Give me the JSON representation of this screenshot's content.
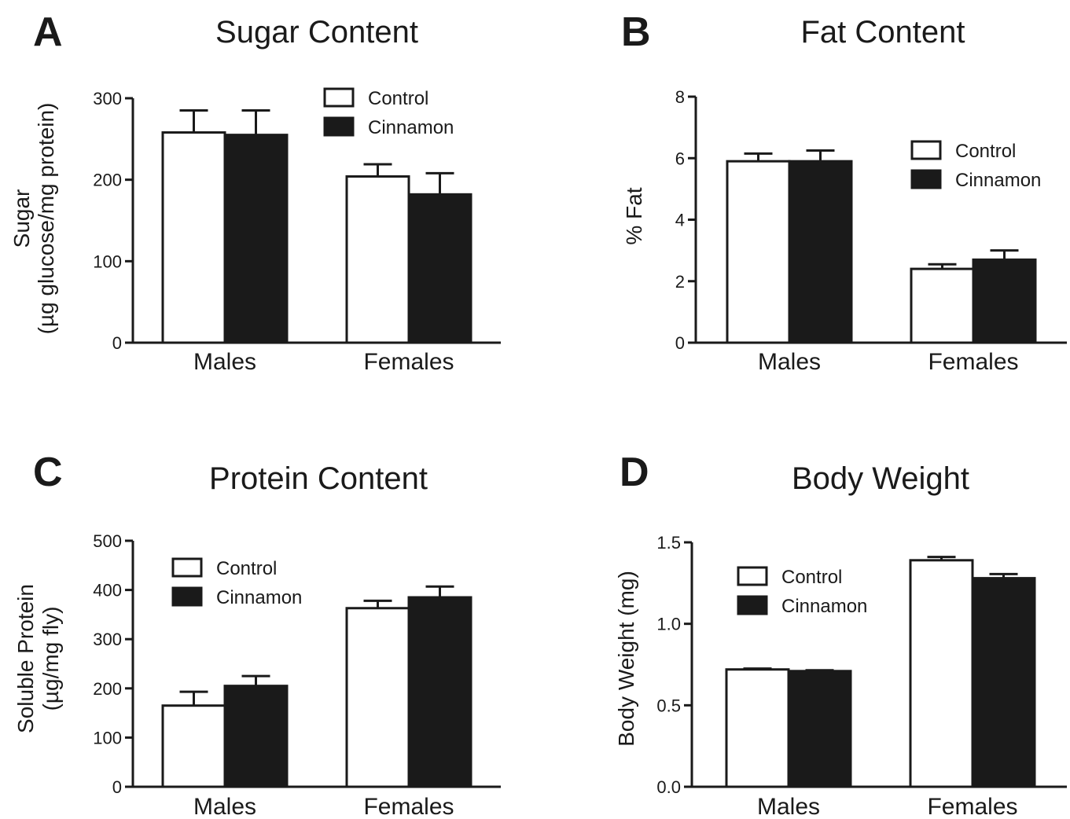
{
  "colors": {
    "control": "#ffffff",
    "cinnamon": "#1a1a1a",
    "stroke": "#1a1a1a"
  },
  "chart_data": [
    {
      "panel": "A",
      "type": "bar",
      "title": "Sugar Content",
      "ylabel_lines": [
        "Sugar",
        "(µg glucose/mg protein)"
      ],
      "categories": [
        "Males",
        "Females"
      ],
      "series": [
        {
          "name": "Control",
          "values": [
            258,
            204
          ],
          "errors": [
            27,
            15
          ]
        },
        {
          "name": "Cinnamon",
          "values": [
            255,
            182
          ],
          "errors": [
            30,
            26
          ]
        }
      ],
      "ylim": [
        0,
        300
      ],
      "yticks": [
        0,
        100,
        200,
        300
      ],
      "ytick_labels": [
        "0",
        "100",
        "200",
        "300"
      ],
      "legend": "top-right"
    },
    {
      "panel": "B",
      "type": "bar",
      "title": "Fat Content",
      "ylabel_lines": [
        "% Fat"
      ],
      "categories": [
        "Males",
        "Females"
      ],
      "series": [
        {
          "name": "Control",
          "values": [
            5.9,
            2.4
          ],
          "errors": [
            0.25,
            0.15
          ]
        },
        {
          "name": "Cinnamon",
          "values": [
            5.9,
            2.7
          ],
          "errors": [
            0.35,
            0.3
          ]
        }
      ],
      "ylim": [
        0,
        8
      ],
      "yticks": [
        0,
        2,
        4,
        6,
        8
      ],
      "ytick_labels": [
        "0",
        "2",
        "4",
        "6",
        "8"
      ],
      "legend": "right"
    },
    {
      "panel": "C",
      "type": "bar",
      "title": "Protein Content",
      "ylabel_lines": [
        "Soluble Protein",
        "(µg/mg fly)"
      ],
      "categories": [
        "Males",
        "Females"
      ],
      "series": [
        {
          "name": "Control",
          "values": [
            165,
            363
          ],
          "errors": [
            28,
            15
          ]
        },
        {
          "name": "Cinnamon",
          "values": [
            205,
            385
          ],
          "errors": [
            20,
            22
          ]
        }
      ],
      "ylim": [
        0,
        500
      ],
      "yticks": [
        0,
        100,
        200,
        300,
        400,
        500
      ],
      "ytick_labels": [
        "0",
        "100",
        "200",
        "300",
        "400",
        "500"
      ],
      "legend": "top-left"
    },
    {
      "panel": "D",
      "type": "bar",
      "title": "Body Weight",
      "ylabel_lines": [
        "Body Weight (mg)"
      ],
      "categories": [
        "Males",
        "Females"
      ],
      "series": [
        {
          "name": "Control",
          "values": [
            0.72,
            1.39
          ],
          "errors": [
            0.005,
            0.02
          ]
        },
        {
          "name": "Cinnamon",
          "values": [
            0.71,
            1.28
          ],
          "errors": [
            0.005,
            0.025
          ]
        }
      ],
      "ylim": [
        0,
        1.5
      ],
      "yticks": [
        0,
        0.5,
        1,
        1.5
      ],
      "ytick_labels": [
        "0.0",
        "0.5",
        "1.0",
        "1.5"
      ],
      "legend": "top-left"
    }
  ]
}
